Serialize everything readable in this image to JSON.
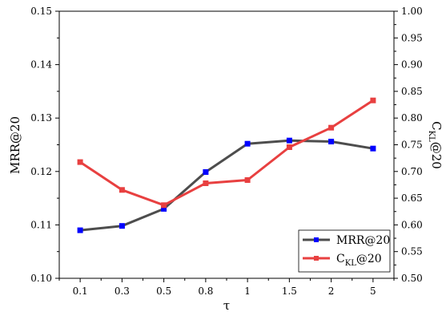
{
  "chart_data": {
    "type": "line",
    "categories": [
      "0.1",
      "0.3",
      "0.5",
      "0.8",
      "1",
      "1.5",
      "2",
      "5"
    ],
    "xlabel": "τ",
    "series": [
      {
        "name": "MRR@20",
        "axis": "left",
        "values": [
          0.109,
          0.1098,
          0.113,
          0.1199,
          0.1252,
          0.1258,
          0.1256,
          0.1243
        ],
        "line_color": "#4d4d4d",
        "marker_color": "#0000ff"
      },
      {
        "name_main": "C",
        "name_sub": "KL",
        "name_suffix": "@20",
        "axis": "right",
        "values": [
          0.7175,
          0.6655,
          0.637,
          0.678,
          0.684,
          0.7455,
          0.782,
          0.833
        ],
        "line_color": "#e84040",
        "marker_color": "#e84040"
      }
    ],
    "y_left": {
      "label": "MRR@20",
      "range": [
        0.1,
        0.15
      ],
      "ticks": [
        "0.10",
        "0.11",
        "0.12",
        "0.13",
        "0.14",
        "0.15"
      ]
    },
    "y_right": {
      "label_main": "C",
      "label_sub": "KL",
      "label_suffix": "@20",
      "range": [
        0.5,
        1.0
      ],
      "ticks": [
        "0.50",
        "0.55",
        "0.60",
        "0.65",
        "0.70",
        "0.75",
        "0.80",
        "0.85",
        "0.90",
        "0.95",
        "1.00"
      ]
    },
    "grid": false,
    "legend_position": "bottom-right"
  }
}
